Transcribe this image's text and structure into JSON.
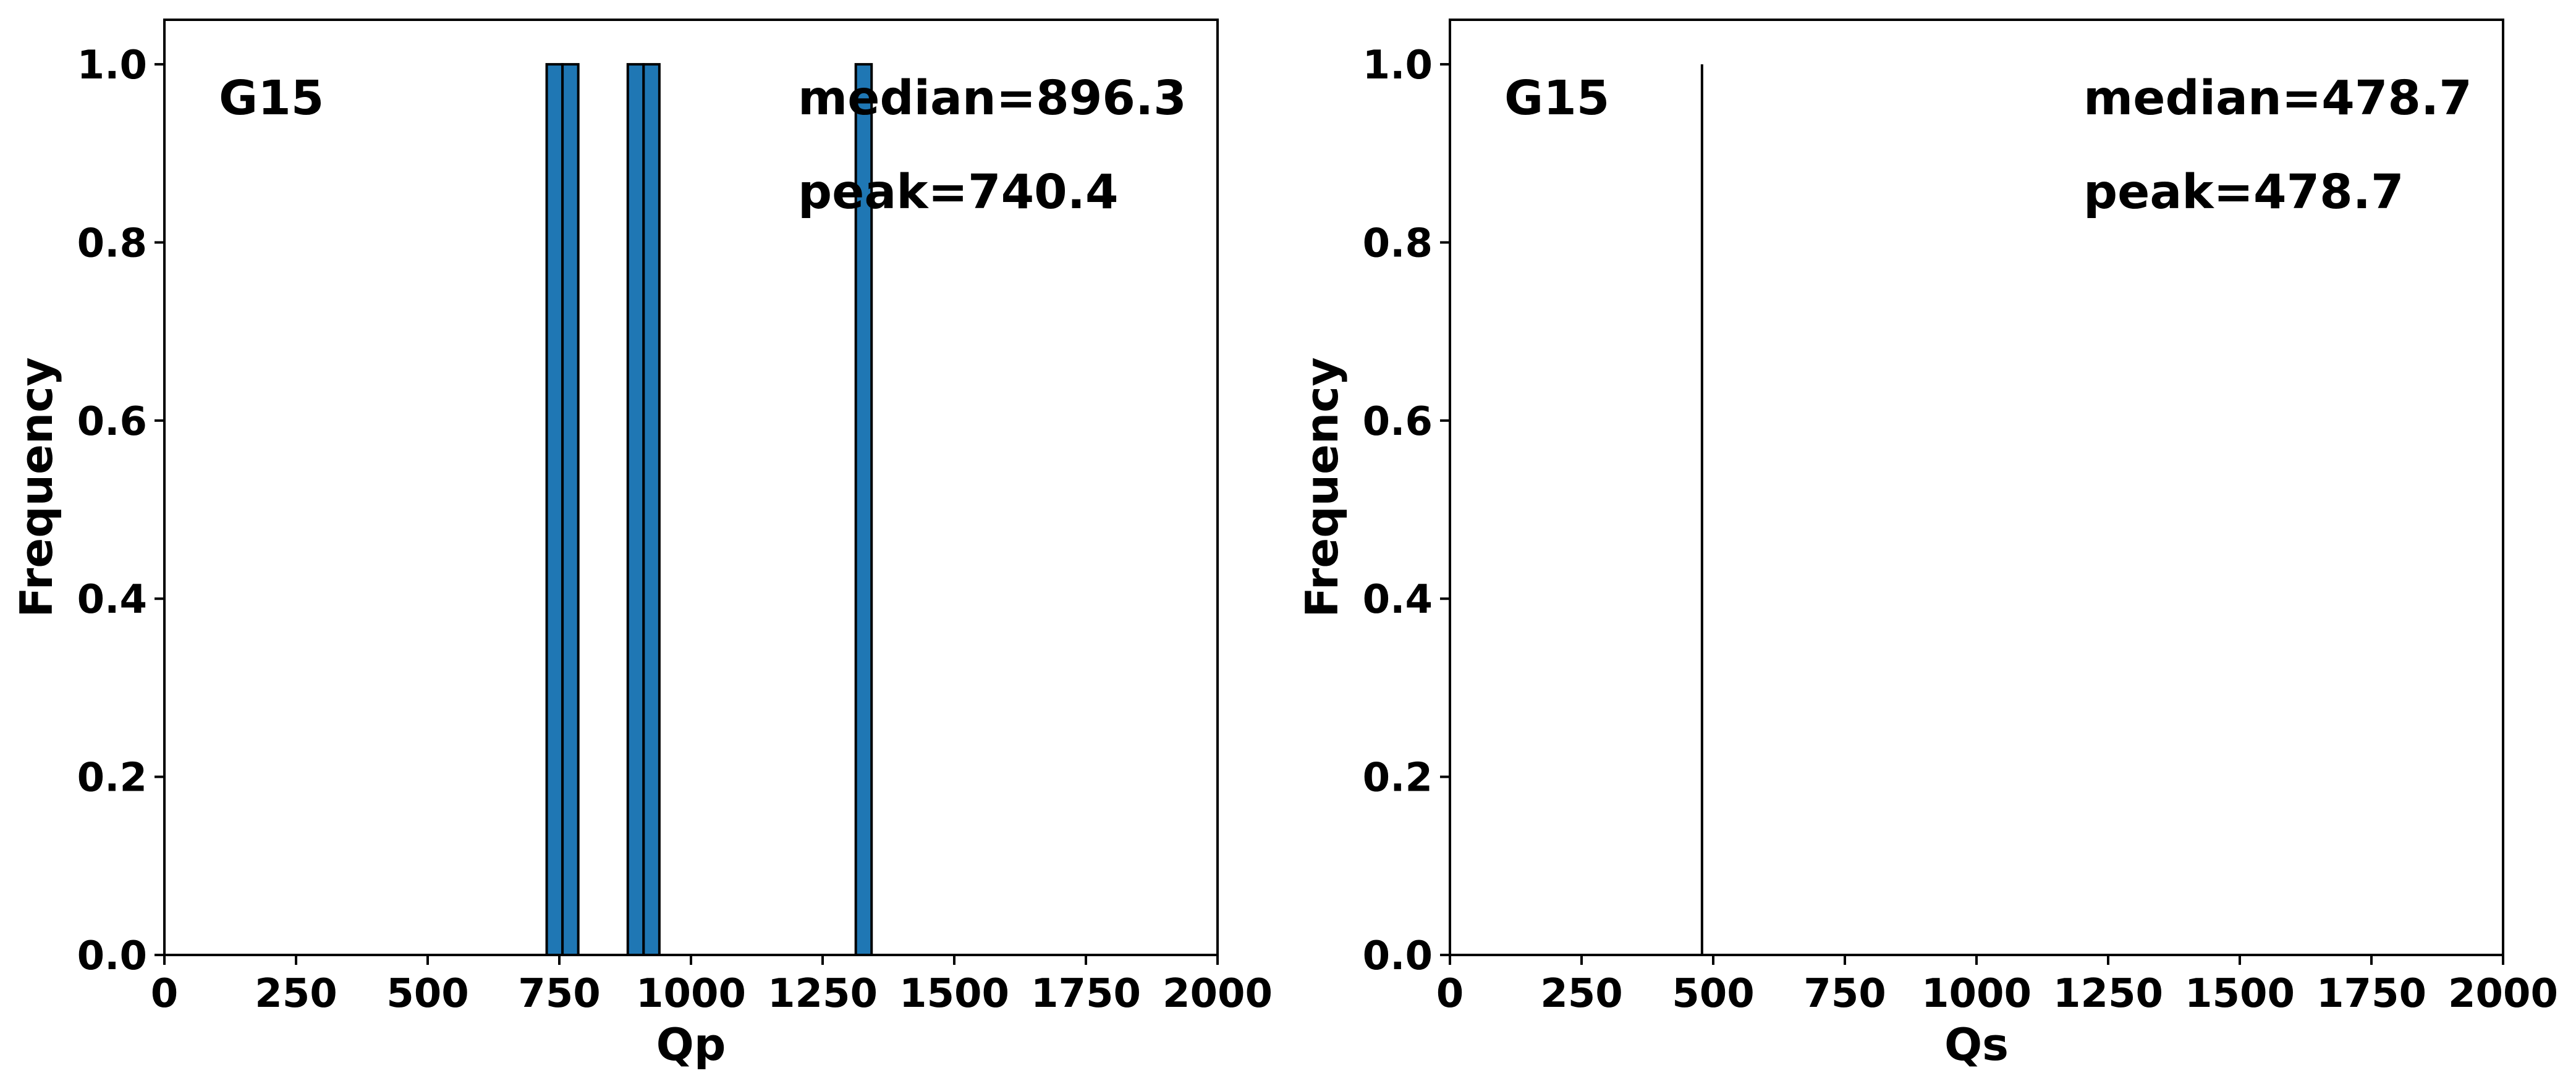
{
  "colors": {
    "bar_fill": "#1f77b4",
    "bar_edge": "#000000",
    "axis": "#000000",
    "background": "#ffffff"
  },
  "chart_data": [
    {
      "type": "bar",
      "subtype": "histogram",
      "title": "",
      "xlabel": "Qp",
      "ylabel": "Frequency",
      "xlim": [
        0,
        2000
      ],
      "ylim": [
        0,
        1.05
      ],
      "xticks": [
        "0",
        "250",
        "500",
        "750",
        "1000",
        "1250",
        "1500",
        "1750",
        "2000"
      ],
      "yticks": [
        "0.0",
        "0.2",
        "0.4",
        "0.6",
        "0.8",
        "1.0"
      ],
      "grid": false,
      "annotations": {
        "label": "G15",
        "median": "median=896.3",
        "peak": "peak=740.4"
      },
      "bins": [
        {
          "x0": 726,
          "x1": 756,
          "value": 1.0
        },
        {
          "x0": 756,
          "x1": 786,
          "value": 1.0
        },
        {
          "x0": 880,
          "x1": 910,
          "value": 1.0
        },
        {
          "x0": 910,
          "x1": 940,
          "value": 1.0
        },
        {
          "x0": 1313,
          "x1": 1343,
          "value": 1.0
        }
      ]
    },
    {
      "type": "bar",
      "subtype": "histogram",
      "title": "",
      "xlabel": "Qs",
      "ylabel": "Frequency",
      "xlim": [
        0,
        2000
      ],
      "ylim": [
        0,
        1.05
      ],
      "xticks": [
        "0",
        "250",
        "500",
        "750",
        "1000",
        "1250",
        "1500",
        "1750",
        "2000"
      ],
      "yticks": [
        "0.0",
        "0.2",
        "0.4",
        "0.6",
        "0.8",
        "1.0"
      ],
      "grid": false,
      "annotations": {
        "label": "G15",
        "median": "median=478.7",
        "peak": "peak=478.7"
      },
      "bins": [
        {
          "x0": 478.7,
          "x1": 478.7,
          "value": 1.0
        }
      ]
    }
  ]
}
